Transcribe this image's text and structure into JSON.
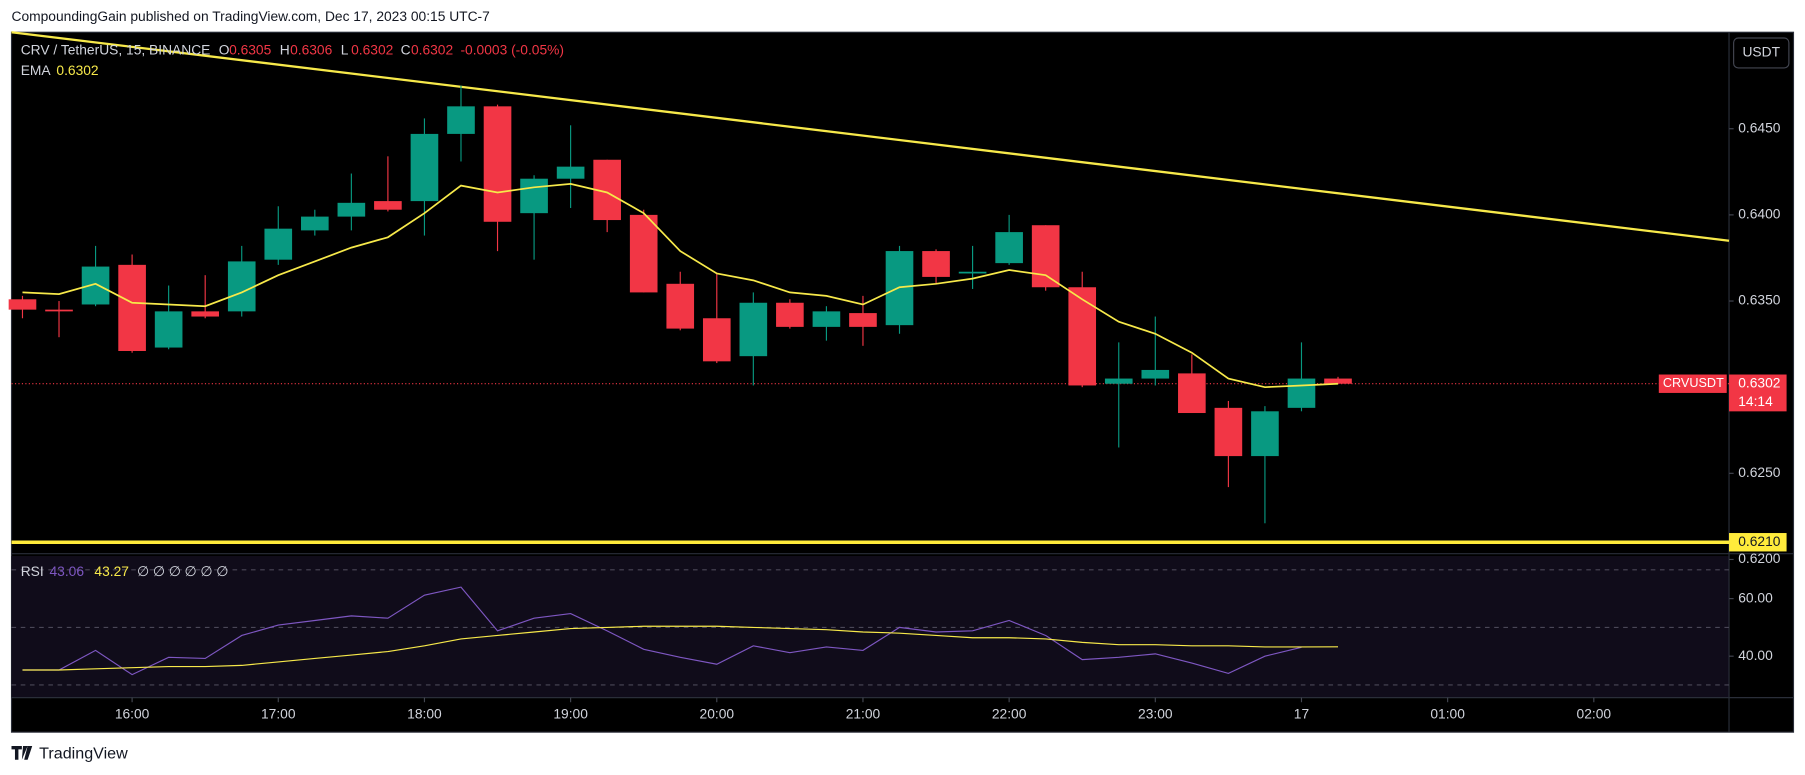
{
  "header": "CompoundingGain published on TradingView.com, Dec 17, 2023 00:15 UTC-7",
  "currency_button": "USDT",
  "footer": "TradingView",
  "chart_data": [
    {
      "type": "candlestick",
      "title": "CRV / TetherUS, 15, BINANCE",
      "ohlc_labels": [
        "O",
        "H",
        "L",
        "C"
      ],
      "change_text": "-0.0003 (-0.05%)",
      "up_color": "#089981",
      "down_color": "#f23645",
      "open": [
        0.6351,
        0.6345,
        0.6348,
        0.6371,
        0.6323,
        0.6344,
        0.6344,
        0.6374,
        0.6391,
        0.6399,
        0.6408,
        0.6408,
        0.6447,
        0.6463,
        0.6401,
        0.6421,
        0.6432,
        0.64,
        0.636,
        0.634,
        0.6318,
        0.6349,
        0.6335,
        0.6343,
        0.6336,
        0.6379,
        0.6366,
        0.6372,
        0.6394,
        0.6358,
        0.6302,
        0.6305,
        0.6308,
        0.6288,
        0.626,
        0.6288,
        0.6305
      ],
      "high": [
        0.6353,
        0.635,
        0.6382,
        0.6377,
        0.6359,
        0.6365,
        0.6382,
        0.6405,
        0.6403,
        0.6424,
        0.6434,
        0.6456,
        0.6475,
        0.6464,
        0.6423,
        0.6452,
        0.6432,
        0.6403,
        0.6367,
        0.6366,
        0.6355,
        0.6351,
        0.6347,
        0.6353,
        0.6382,
        0.638,
        0.6382,
        0.64,
        0.6394,
        0.6367,
        0.6326,
        0.6341,
        0.6319,
        0.6292,
        0.6289,
        0.6326,
        0.6306
      ],
      "low": [
        0.634,
        0.6329,
        0.6347,
        0.632,
        0.6322,
        0.634,
        0.6341,
        0.6371,
        0.6388,
        0.6391,
        0.6402,
        0.6388,
        0.6431,
        0.6379,
        0.6374,
        0.6404,
        0.639,
        0.6355,
        0.6333,
        0.6314,
        0.6301,
        0.6334,
        0.6327,
        0.6324,
        0.6331,
        0.636,
        0.6357,
        0.6371,
        0.6356,
        0.63,
        0.6265,
        0.6301,
        0.6285,
        0.6242,
        0.6221,
        0.6286,
        0.6302
      ],
      "close": [
        0.6345,
        0.6344,
        0.637,
        0.6321,
        0.6344,
        0.6341,
        0.6373,
        0.6392,
        0.6399,
        0.6407,
        0.6403,
        0.6447,
        0.6463,
        0.6396,
        0.6421,
        0.6428,
        0.6397,
        0.6355,
        0.6334,
        0.6315,
        0.6349,
        0.6335,
        0.6344,
        0.6335,
        0.6379,
        0.6364,
        0.6367,
        0.639,
        0.6358,
        0.6301,
        0.6305,
        0.631,
        0.6285,
        0.626,
        0.6286,
        0.6305,
        0.6302
      ],
      "series": [
        {
          "name": "EMA",
          "color": "#f7e94a",
          "values": [
            0.6355,
            0.6354,
            0.636,
            0.6349,
            0.6348,
            0.6347,
            0.6355,
            0.6365,
            0.6373,
            0.6381,
            0.6387,
            0.6401,
            0.6417,
            0.6413,
            0.6416,
            0.6418,
            0.6413,
            0.6401,
            0.6379,
            0.6366,
            0.6362,
            0.6355,
            0.6353,
            0.6348,
            0.6358,
            0.636,
            0.6363,
            0.6368,
            0.6365,
            0.6351,
            0.6338,
            0.6331,
            0.632,
            0.6305,
            0.63,
            0.6301,
            0.6302
          ]
        }
      ],
      "trend_line": {
        "color": "#f7e94a",
        "values": [
          0.6506,
          0.6385
        ]
      },
      "horizontal_line": {
        "value": 0.621,
        "label": "0.6210",
        "color": "#ffeb3b"
      },
      "last_price": {
        "symbol": "CRVUSDT",
        "value": 0.6302,
        "countdown": "14:14",
        "color": "#f23645"
      },
      "ylim": [
        0.6204,
        0.6506
      ],
      "yticks": [
        {
          "value": 0.645,
          "label": "0.6450"
        },
        {
          "value": 0.64,
          "label": "0.6400"
        },
        {
          "value": 0.635,
          "label": "0.6350"
        },
        {
          "value": 0.625,
          "label": "0.6250"
        },
        {
          "value": 0.62,
          "label": "0.6200"
        }
      ],
      "xlim": [
        -0.3,
        46.7
      ],
      "xticks": [
        {
          "value": 3,
          "label": "16:00"
        },
        {
          "value": 7,
          "label": "17:00"
        },
        {
          "value": 11,
          "label": "18:00"
        },
        {
          "value": 15,
          "label": "19:00"
        },
        {
          "value": 19,
          "label": "20:00"
        },
        {
          "value": 23,
          "label": "21:00"
        },
        {
          "value": 27,
          "label": "22:00"
        },
        {
          "value": 31,
          "label": "23:00"
        },
        {
          "value": 35,
          "label": "17"
        },
        {
          "value": 39,
          "label": "01:00"
        },
        {
          "value": 43,
          "label": "02:00"
        }
      ]
    },
    {
      "type": "line",
      "title": "RSI",
      "legend_extra": "∅ ∅ ∅ ∅ ∅ ∅",
      "series": [
        {
          "name": "RSI",
          "color": "#7e57c2",
          "values": [
            35.2,
            35.2,
            42,
            33.6,
            39.6,
            39.2,
            47.2,
            50.8,
            52.4,
            54,
            53.2,
            61.2,
            64,
            48.8,
            53.2,
            54.8,
            48.8,
            42.4,
            39.6,
            37.2,
            43.6,
            41.2,
            43.2,
            42,
            50,
            48.4,
            48.8,
            52.4,
            47.2,
            38.8,
            39.6,
            40.8,
            37.6,
            34,
            40,
            43.06,
            null
          ]
        },
        {
          "color": "#f7e94a",
          "values": [
            35.2,
            35.2,
            35.6,
            36,
            36.4,
            36.4,
            36.8,
            38,
            39.2,
            40.4,
            41.6,
            43.6,
            46,
            47.2,
            48.4,
            49.6,
            50,
            50.4,
            50.4,
            50.4,
            50,
            49.6,
            49.2,
            48.4,
            48,
            47.2,
            46.4,
            46.4,
            46,
            44.8,
            44,
            44,
            43.6,
            43.6,
            43.2,
            43.2,
            43.27
          ]
        }
      ],
      "levels": [
        70,
        50,
        30
      ],
      "ylim": [
        25.6,
        74.8
      ],
      "yticks": [
        {
          "value": 60,
          "label": "60.00"
        },
        {
          "value": 40,
          "label": "40.00"
        }
      ]
    }
  ]
}
